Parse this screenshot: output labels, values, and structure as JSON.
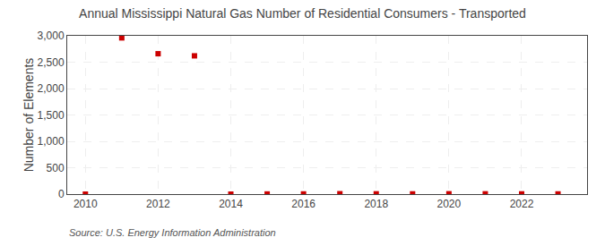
{
  "chart_data": {
    "type": "scatter",
    "title": "Annual Mississippi Natural Gas Number of Residential Consumers - Transported",
    "ylabel": "Number of Elements",
    "annotations": [
      "Source: U.S. Energy Information Administration"
    ],
    "x": [
      2010,
      2011,
      2012,
      2013,
      2014,
      2015,
      2016,
      2017,
      2018,
      2019,
      2020,
      2021,
      2022,
      2023
    ],
    "values": [
      0,
      2960,
      2660,
      2620,
      0,
      3,
      4,
      8,
      6,
      5,
      7,
      6,
      5,
      4
    ],
    "color": "#cc0000",
    "marker": "square",
    "xlim": [
      2009.5,
      2023.8
    ],
    "ylim": [
      0,
      3000
    ],
    "xticks": [
      2010,
      2012,
      2014,
      2016,
      2018,
      2020,
      2022
    ],
    "yticks": [
      0,
      500,
      {
        "value": 1000,
        "label": "1,000"
      },
      {
        "value": 1500,
        "label": "1,500"
      },
      {
        "value": 2000,
        "label": "2,000"
      },
      {
        "value": 2500,
        "label": "2,500"
      },
      {
        "value": 3000,
        "label": "3,000"
      }
    ],
    "grid": true
  }
}
